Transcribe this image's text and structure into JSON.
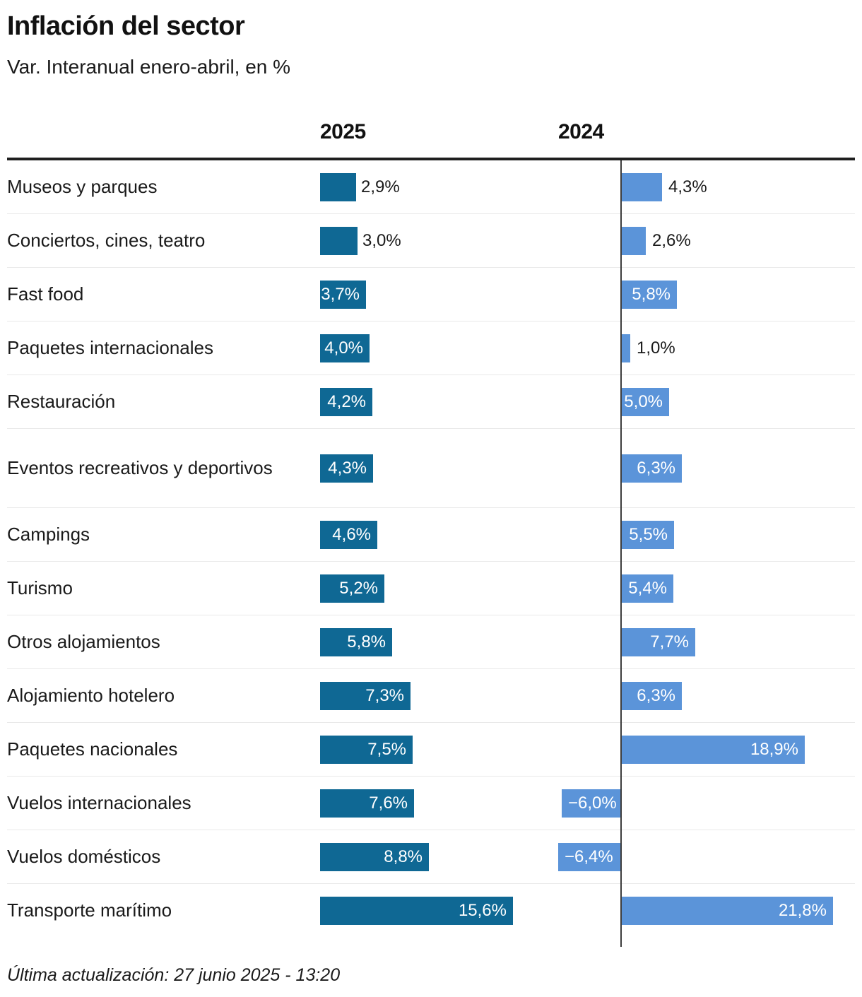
{
  "header": {
    "title": "Inflación del sector",
    "subtitle": "Var. Interanual enero-abril, en %"
  },
  "footer": {
    "last_updated": "Última actualización: 27 junio 2025 - 13:20"
  },
  "chart_data": {
    "type": "bar",
    "orientation": "horizontal",
    "title": "Inflación del sector",
    "subtitle": "Var. Interanual enero-abril, en %",
    "unit": "%",
    "series": [
      "2025",
      "2024"
    ],
    "legend_position": "column headers above chart",
    "grid": "row separators only, zero axis line on 2024 column",
    "axis_note": "each year column has its own horizontal scale starting at 0",
    "colors": {
      "bar_2025": "#0f6894",
      "bar_2024": "#5b94d9",
      "axis_line": "#3d3d3d",
      "rule": "#1f1f1f",
      "separator": "#e9e9e9"
    },
    "rows": [
      {
        "category": "Museos y parques",
        "values": [
          2.9,
          4.3
        ],
        "labels": [
          "2,9%",
          "4,3%"
        ]
      },
      {
        "category": "Conciertos, cines, teatro",
        "values": [
          3.0,
          2.6
        ],
        "labels": [
          "3,0%",
          "2,6%"
        ]
      },
      {
        "category": "Fast food",
        "values": [
          3.7,
          5.8
        ],
        "labels": [
          "3,7%",
          "5,8%"
        ]
      },
      {
        "category": "Paquetes internacionales",
        "values": [
          4.0,
          1.0
        ],
        "labels": [
          "4,0%",
          "1,0%"
        ]
      },
      {
        "category": "Restauración",
        "values": [
          4.2,
          5.0
        ],
        "labels": [
          "4,2%",
          "5,0%"
        ]
      },
      {
        "category": "Eventos recreativos y deportivos",
        "values": [
          4.3,
          6.3
        ],
        "labels": [
          "4,3%",
          "6,3%"
        ]
      },
      {
        "category": "Campings",
        "values": [
          4.6,
          5.5
        ],
        "labels": [
          "4,6%",
          "5,5%"
        ]
      },
      {
        "category": "Turismo",
        "values": [
          5.2,
          5.4
        ],
        "labels": [
          "5,2%",
          "5,4%"
        ]
      },
      {
        "category": "Otros alojamientos",
        "values": [
          5.8,
          7.7
        ],
        "labels": [
          "5,8%",
          "7,7%"
        ]
      },
      {
        "category": "Alojamiento hotelero",
        "values": [
          7.3,
          6.3
        ],
        "labels": [
          "7,3%",
          "6,3%"
        ]
      },
      {
        "category": "Paquetes nacionales",
        "values": [
          7.5,
          18.9
        ],
        "labels": [
          "7,5%",
          "18,9%"
        ]
      },
      {
        "category": "Vuelos internacionales",
        "values": [
          7.6,
          -6.0
        ],
        "labels": [
          "7,6%",
          "−6,0%"
        ]
      },
      {
        "category": "Vuelos domésticos",
        "values": [
          8.8,
          -6.4
        ],
        "labels": [
          "8,8%",
          "−6,4%"
        ]
      },
      {
        "category": "Transporte marítimo",
        "values": [
          15.6,
          21.8
        ],
        "labels": [
          "15,6%",
          "21,8%"
        ]
      }
    ]
  }
}
